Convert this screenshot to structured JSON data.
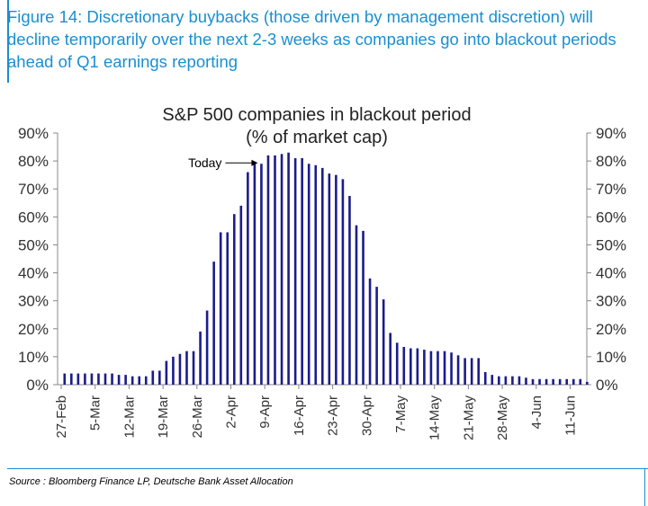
{
  "figure_title": "Figure 14: Discretionary buybacks (those driven by management discretion) will decline temporarily over the next 2-3 weeks as companies go into blackout periods ahead of Q1 earnings reporting",
  "source": "Source : Bloomberg Finance LP, Deutsche Bank Asset Allocation",
  "colors": {
    "title": "#1a8fd1",
    "bars": "#1c1c8c",
    "axis": "#888888"
  },
  "chart_data": {
    "type": "bar",
    "title": "S&P 500 companies in blackout period",
    "subtitle": "(% of market cap)",
    "xlabel": "",
    "ylabel": "",
    "ylim": [
      0,
      90
    ],
    "y_tick_labels": [
      "0%",
      "10%",
      "20%",
      "30%",
      "40%",
      "50%",
      "60%",
      "70%",
      "80%",
      "90%"
    ],
    "x_tick_labels": [
      "27-Feb",
      "5-Mar",
      "12-Mar",
      "19-Mar",
      "26-Mar",
      "2-Apr",
      "9-Apr",
      "16-Apr",
      "23-Apr",
      "30-Apr",
      "7-May",
      "14-May",
      "21-May",
      "28-May",
      "4-Jun",
      "11-Jun"
    ],
    "days_per_week": 5,
    "values": [
      4,
      4,
      4,
      4,
      4,
      4,
      4,
      4,
      3.5,
      3.5,
      3,
      3,
      3,
      5,
      5,
      8.5,
      10,
      11,
      12,
      12,
      19,
      26.5,
      44,
      54.5,
      54.5,
      61,
      64,
      76,
      79,
      79,
      82,
      82,
      82.5,
      83,
      81,
      81,
      79,
      78.5,
      77.5,
      75.5,
      75,
      73.5,
      67.5,
      57,
      55,
      38,
      35,
      30.5,
      18.5,
      15,
      13.5,
      13,
      13,
      12.5,
      12,
      12,
      12,
      11.5,
      10.5,
      9.5,
      9.5,
      9.5,
      4.5,
      3.5,
      3,
      3,
      3,
      3,
      2.5,
      2,
      2,
      2,
      2,
      2,
      2,
      2,
      2,
      1
    ],
    "annotation": {
      "label": "Today",
      "bar_index": 29
    },
    "grid": false,
    "legend": "none"
  }
}
